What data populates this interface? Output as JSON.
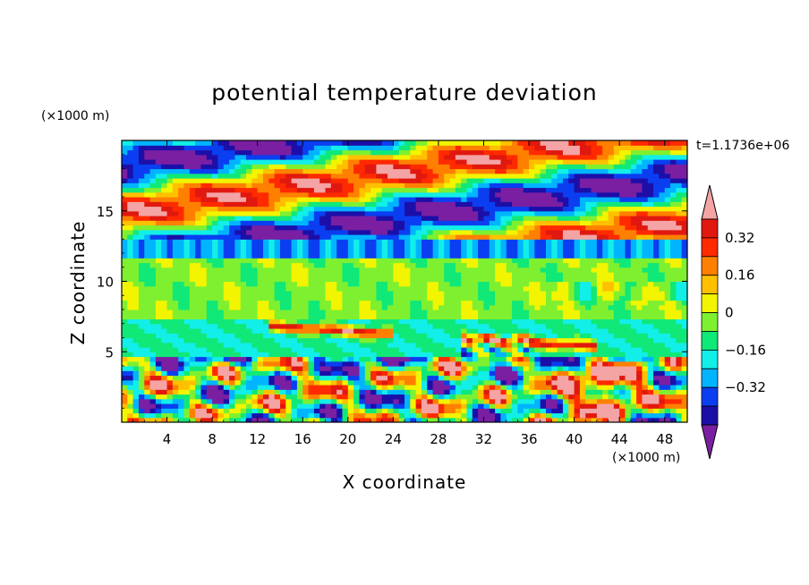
{
  "chart_data": {
    "type": "heatmap",
    "title": "potential temperature deviation",
    "xlabel": "X coordinate",
    "ylabel": "Z coordinate",
    "x_unit": "(×1000 m)",
    "y_unit": "(×1000 m)",
    "time_label": "t=1.1736e+06",
    "xlim": [
      0,
      50
    ],
    "ylim": [
      0,
      20
    ],
    "x_ticks": [
      4,
      8,
      12,
      16,
      20,
      24,
      28,
      32,
      36,
      40,
      44,
      48
    ],
    "y_ticks": [
      5,
      10,
      15
    ],
    "colorbar": {
      "levels": [
        -0.48,
        -0.4,
        -0.32,
        -0.24,
        -0.16,
        -0.08,
        0,
        0.08,
        0.16,
        0.24,
        0.32,
        0.4,
        0.48
      ],
      "labeled_ticks": [
        "0.32",
        "0.16",
        "0",
        "−0.16",
        "−0.32"
      ],
      "colors": [
        "#7a1fa2",
        "#1c0fa8",
        "#0a3ef0",
        "#00b4ff",
        "#12eee8",
        "#10e878",
        "#7ef030",
        "#f2f400",
        "#ffc000",
        "#ff8000",
        "#ff2a00",
        "#e0180f",
        "#f4a4a4"
      ]
    },
    "field_bands": [
      {
        "z_range": [
          0,
          5
        ],
        "pattern": "turbulent mixed -0.48 to 0.48, large positive blob near x=40-48"
      },
      {
        "z_range": [
          5,
          7.5
        ],
        "pattern": "mostly -0.16 to 0 with positive streaks near x=14-24 and x=30-42"
      },
      {
        "z_range": [
          7.5,
          12
        ],
        "pattern": "near 0 to 0.08"
      },
      {
        "z_range": [
          12,
          13
        ],
        "pattern": "layer of -0.32 to -0.16"
      },
      {
        "z_range": [
          13,
          20
        ],
        "pattern": "banded alternating -0.48 and 0.48 tilted layers"
      }
    ]
  }
}
